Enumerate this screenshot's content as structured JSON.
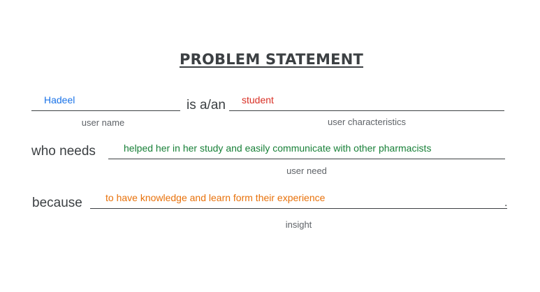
{
  "title": "PROBLEM STATEMENT",
  "row1": {
    "user_name_value": "Hadeel",
    "user_name_caption": "user name",
    "connector": "is a/an",
    "characteristics_value": "student",
    "characteristics_caption": "user characteristics"
  },
  "row2": {
    "prompt": "who needs",
    "need_value": "helped her in her study and easily communicate with other pharmacists",
    "need_caption": "user need"
  },
  "row3": {
    "prompt": "because",
    "insight_value": "to have knowledge and learn form their experience",
    "insight_caption": "insight",
    "end_punct": "."
  },
  "colors": {
    "user_name": "#1a73e8",
    "characteristics": "#d93025",
    "need": "#188038",
    "insight": "#e8710a",
    "text": "#3c4043"
  }
}
